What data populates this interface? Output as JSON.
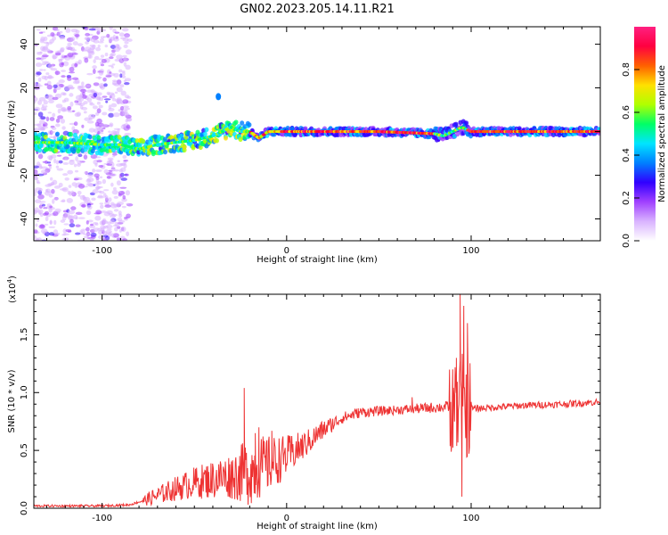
{
  "title": "GN02.2023.205.14.11.R21",
  "chart_data": [
    {
      "type": "heatmap",
      "xlabel": "Height of straight line (km)",
      "ylabel": "Frequency (Hz)",
      "xlim": [
        -137,
        170
      ],
      "ylim": [
        -50,
        48
      ],
      "xticks": [
        -100,
        0,
        100
      ],
      "yticks": [
        -40,
        -20,
        0,
        20,
        40
      ],
      "colorbar": {
        "label": "Normalized spectral amplitude",
        "range": [
          0,
          1
        ],
        "ticks": [
          "0.0",
          "0.2",
          "0.4",
          "0.6",
          "0.8"
        ],
        "colors": [
          "#ffffff",
          "#d9b3ff",
          "#a040ff",
          "#3000ff",
          "#0080ff",
          "#00e5ff",
          "#00ff66",
          "#b0ff00",
          "#ffe000",
          "#ff6000",
          "#ff0040",
          "#ff2080"
        ]
      },
      "ridge": {
        "x": [
          -137,
          -120,
          -100,
          -90,
          -85,
          -80,
          -70,
          -60,
          -50,
          -45,
          -40,
          -35,
          -30,
          -25,
          -20,
          -15,
          -10,
          -5,
          0,
          10,
          50,
          80,
          85,
          90,
          95,
          100,
          170
        ],
        "y": [
          -5,
          -5,
          -6,
          -6,
          -7,
          -8,
          -6,
          -5,
          -4,
          -3,
          -2,
          0,
          2,
          0,
          0,
          -3,
          0,
          0,
          0,
          0,
          0,
          -1,
          -2,
          0,
          2,
          0,
          0
        ]
      }
    },
    {
      "type": "line",
      "xlabel": "Height of straight line (km)",
      "ylabel": "SNR (10 * v/v)",
      "y_multiplier": "(x10",
      "y_multiplier_exp": "4",
      "y_multiplier_close": ")",
      "xlim": [
        -137,
        170
      ],
      "ylim": [
        0,
        1.85
      ],
      "xticks": [
        -100,
        0,
        100
      ],
      "yticks": [
        "0.0",
        "0.5",
        "1.0",
        "1.5"
      ],
      "series": [
        {
          "color": "#ee3333",
          "trend_x": [
            -137,
            -100,
            -85,
            -75,
            -60,
            -50,
            -40,
            -30,
            -20,
            -10,
            0,
            10,
            20,
            30,
            40,
            60,
            80,
            90,
            100,
            110,
            130,
            150,
            170
          ],
          "trend_y": [
            0.02,
            0.02,
            0.03,
            0.08,
            0.17,
            0.22,
            0.25,
            0.28,
            0.32,
            0.38,
            0.45,
            0.55,
            0.68,
            0.78,
            0.83,
            0.85,
            0.87,
            0.88,
            0.86,
            0.87,
            0.89,
            0.9,
            0.92
          ],
          "noise_x": [
            -137,
            -80,
            -75,
            -30,
            -20,
            -10,
            0,
            10,
            30,
            60,
            90,
            100,
            170
          ],
          "noise_y": [
            0.01,
            0.01,
            0.06,
            0.2,
            0.3,
            0.25,
            0.18,
            0.12,
            0.05,
            0.04,
            0.05,
            0.03,
            0.03
          ],
          "spikes": [
            {
              "x": -23,
              "y": 1.04
            },
            {
              "x": -17,
              "y": 0.65
            },
            {
              "x": -15,
              "y": 0.7
            },
            {
              "x": -8,
              "y": 0.67
            },
            {
              "x": 68,
              "y": 0.96
            },
            {
              "x": 90,
              "y": 1.2
            },
            {
              "x": 92,
              "y": 1.3
            },
            {
              "x": 94,
              "y": 1.85
            },
            {
              "x": 95,
              "y": 0.1
            },
            {
              "x": 96,
              "y": 1.75
            },
            {
              "x": 98,
              "y": 1.6
            }
          ]
        }
      ]
    }
  ]
}
